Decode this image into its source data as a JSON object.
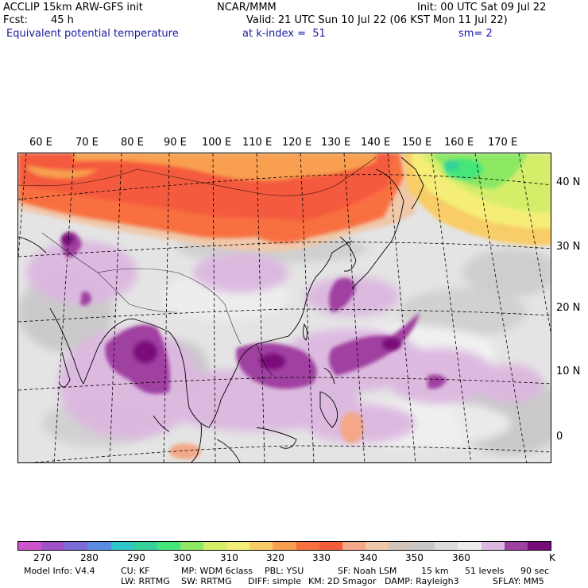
{
  "header": {
    "model": "ACCLIP 15km ARW-GFS init",
    "org": "NCAR/MMM",
    "init": "Init: 00 UTC Sat 09 Jul 22",
    "fcst_label": "Fcst:",
    "fcst_value": "45 h",
    "valid": "Valid: 21 UTC Sun 10 Jul 22 (06 KST Mon 11 Jul 22)",
    "field": "Equivalent potential temperature",
    "level": "at k-index =  51",
    "smooth": "sm= 2"
  },
  "longitude_labels": [
    "60 E",
    "70 E",
    "80 E",
    "90 E",
    "100 E",
    "110 E",
    "120 E",
    "130 E",
    "140 E",
    "150 E",
    "160 E",
    "170 E"
  ],
  "latitude_labels": [
    "40 N",
    "30 N",
    "20 N",
    "10 N",
    "0"
  ],
  "colorbar": {
    "colors": [
      "#cc55cc",
      "#a050c8",
      "#7c6cd8",
      "#5a8ce0",
      "#2ec8c8",
      "#34d29a",
      "#44e67a",
      "#8ce864",
      "#d4ee6a",
      "#f4ee78",
      "#f8cc66",
      "#f8a050",
      "#f87040",
      "#f45a3c",
      "#f4a888",
      "#f0c8aa",
      "#d2c4b8",
      "#c8c8c8",
      "#dcdcdc",
      "#ececec",
      "#dcb8e0",
      "#a040a0",
      "#7a0c7a"
    ],
    "labels": [
      "270",
      "280",
      "290",
      "300",
      "310",
      "320",
      "330",
      "340",
      "350",
      "360"
    ],
    "unit": "K"
  },
  "footer": {
    "line1": [
      "Model Info: V4.4",
      "CU: KF",
      "MP: WDM 6class",
      "PBL: YSU",
      "SF: Noah LSM",
      "15 km",
      "51 levels",
      "90 sec"
    ],
    "line2": [
      "LW: RRTMG",
      "SW: RRTMG",
      "DIFF: simple",
      "KM: 2D Smagor",
      "DAMP: Rayleigh3",
      "SFLAY: MM5"
    ]
  }
}
